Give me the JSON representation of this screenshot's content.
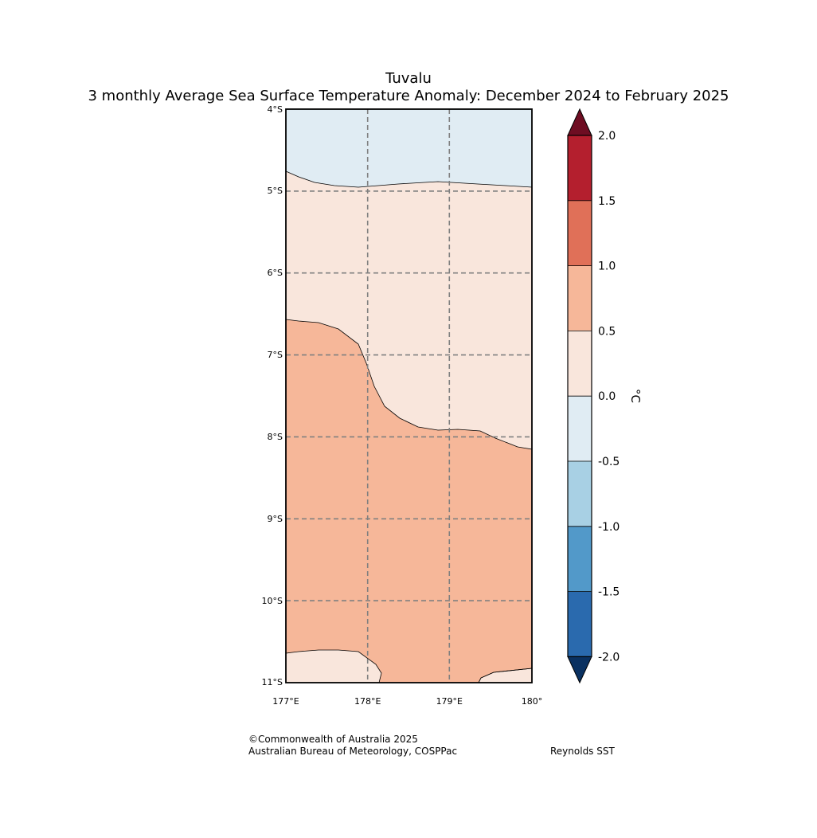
{
  "title": {
    "line1": "Tuvalu",
    "line2": "3 monthly Average Sea Surface Temperature Anomaly: December 2024 to February 2025"
  },
  "map": {
    "lat_ticks": [
      "4°S",
      "5°S",
      "6°S",
      "7°S",
      "8°S",
      "9°S",
      "10°S",
      "11°S"
    ],
    "lon_ticks": [
      "177°E",
      "178°E",
      "179°E",
      "180°"
    ],
    "extent": {
      "lon": [
        177,
        180
      ],
      "lat": [
        -4,
        -11
      ]
    },
    "region_colors": {
      "band_neg0.5_0": "#e0ecf3",
      "band_0_0.5": "#f9e6dc",
      "band_0.5_1.0": "#f6b799"
    },
    "gridline_color": "#808080"
  },
  "colorbar": {
    "label": "°C",
    "tick_labels": [
      "2.0",
      "1.5",
      "1.0",
      "0.5",
      "0.0",
      "-0.5",
      "-1.0",
      "-1.5",
      "-2.0"
    ],
    "bands": [
      {
        "range": "above 2.0",
        "color": "#6e0d22"
      },
      {
        "range": "1.5 to 2.0",
        "color": "#b41f2e"
      },
      {
        "range": "1.0 to 1.5",
        "color": "#e07058"
      },
      {
        "range": "0.5 to 1.0",
        "color": "#f6b799"
      },
      {
        "range": "0.0 to 0.5",
        "color": "#f9e6dc"
      },
      {
        "range": "-0.5 to 0.0",
        "color": "#e0ecf3"
      },
      {
        "range": "-1.0 to -0.5",
        "color": "#a8d0e4"
      },
      {
        "range": "-1.5 to -1.0",
        "color": "#5299c9"
      },
      {
        "range": "-2.0 to -1.5",
        "color": "#2a6aae"
      },
      {
        "range": "below -2.0",
        "color": "#0a3161"
      }
    ]
  },
  "credits": {
    "copyright": "©Commonwealth of Australia 2025",
    "agency": "Australian Bureau of Meteorology, COSPPac",
    "source": "Reynolds SST"
  }
}
